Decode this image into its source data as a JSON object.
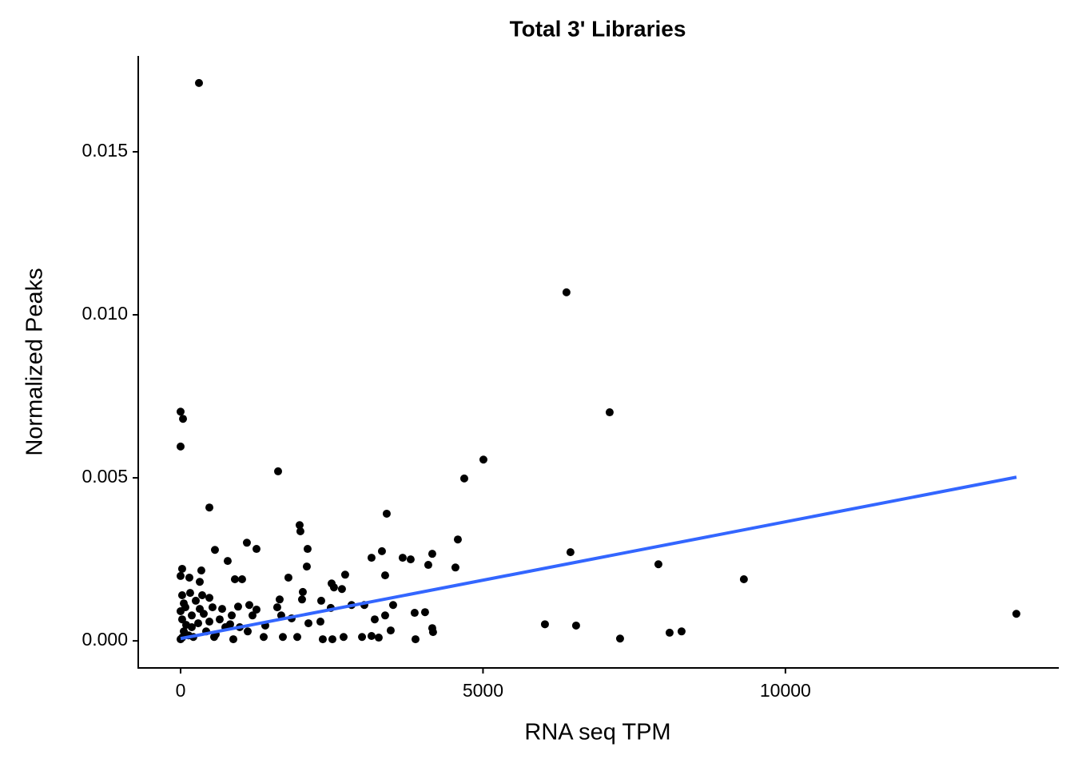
{
  "chart_data": {
    "type": "scatter",
    "title": "Total 3' Libraries",
    "x_label": "RNA seq TPM",
    "y_label": "Normalized Peaks",
    "color": "#000000",
    "x": [
      304,
      0,
      40,
      0,
      1612,
      476,
      5007,
      4690,
      6380,
      7094,
      3408,
      4584,
      6446,
      7900,
      9313,
      13818,
      6024,
      6539,
      7266,
      8085,
      8283,
      1968,
      1981,
      2100,
      1096,
      1255,
      568,
      779,
      343,
      26,
      0,
      145,
      317,
      898,
      1017,
      1783,
      2087,
      2021,
      2721,
      2497,
      2536,
      2668,
      3157,
      3329,
      3382,
      3672,
      3804,
      4095,
      4161,
      4544,
      3514,
      3210,
      3870,
      4042,
      4161,
      4174,
      3884,
      3474,
      3382,
      3038,
      2827,
      2325,
      2008,
      1638,
      1598,
      1136,
      1255,
      1189,
      951,
      819,
      1400,
      1664,
      1836,
      2312,
      2483,
      2114,
      1374,
      1691,
      1929,
      2351,
      2510,
      2695,
      3000,
      3157,
      3276,
      872,
      555,
      26,
      79,
      185,
      291,
      423,
      528,
      647,
      740,
      53,
      132,
      251,
      383,
      476,
      581,
      687,
      26,
      92,
      211,
      317,
      0,
      26,
      0,
      53,
      158,
      357,
      476,
      846,
      978,
      1110,
      185
    ],
    "values": [
      0.01711,
      0.00703,
      0.00681,
      0.00596,
      0.0052,
      0.00409,
      0.00556,
      0.00498,
      0.01069,
      0.00701,
      0.0039,
      0.00311,
      0.00272,
      0.00235,
      0.00189,
      0.00083,
      0.00051,
      0.00047,
      7e-05,
      0.00025,
      0.00029,
      0.00355,
      0.00336,
      0.00282,
      0.00301,
      0.00282,
      0.00279,
      0.00245,
      0.00216,
      0.00221,
      0.00199,
      0.00194,
      0.00181,
      0.00189,
      0.00189,
      0.00194,
      0.00228,
      0.0015,
      0.00203,
      0.00176,
      0.00164,
      0.00159,
      0.00255,
      0.00275,
      0.00201,
      0.00255,
      0.0025,
      0.00233,
      0.00267,
      0.00225,
      0.0011,
      0.00066,
      0.00086,
      0.00088,
      0.00039,
      0.00027,
      5e-05,
      0.00032,
      0.00078,
      0.0011,
      0.0011,
      0.00123,
      0.00127,
      0.00127,
      0.00103,
      0.0011,
      0.00096,
      0.00078,
      0.00105,
      0.00051,
      0.00047,
      0.00078,
      0.00069,
      0.00059,
      0.00101,
      0.00054,
      0.00012,
      0.00012,
      0.00012,
      5e-05,
      5e-05,
      0.00012,
      0.00012,
      0.00015,
      0.0001,
      5e-05,
      0.00012,
      0.0014,
      0.00103,
      0.00078,
      0.00054,
      0.00029,
      0.00103,
      0.00066,
      0.00042,
      0.00029,
      0.00017,
      0.00123,
      0.00083,
      0.00059,
      0.0002,
      0.00098,
      0.00066,
      0.00049,
      0.00012,
      0.00098,
      5e-05,
      0.0001,
      0.00091,
      0.00115,
      0.00147,
      0.0014,
      0.00132,
      0.00078,
      0.00042,
      0.00029,
      0.00042
    ],
    "fit": {
      "x": [
        0,
        13820
      ],
      "y": [
        7e-05,
        0.00502
      ],
      "color": "#3366ff"
    },
    "xlim": [
      -700,
      14520
    ],
    "ylim": [
      -0.00083,
      0.01794
    ],
    "xticks": [
      0,
      5000,
      10000
    ],
    "yticks": [
      {
        "value": 0,
        "label": "0.000"
      },
      {
        "value": 0.005,
        "label": "0.005"
      },
      {
        "value": 0.01,
        "label": "0.010"
      },
      {
        "value": 0.015,
        "label": "0.015"
      }
    ],
    "grid": false
  }
}
